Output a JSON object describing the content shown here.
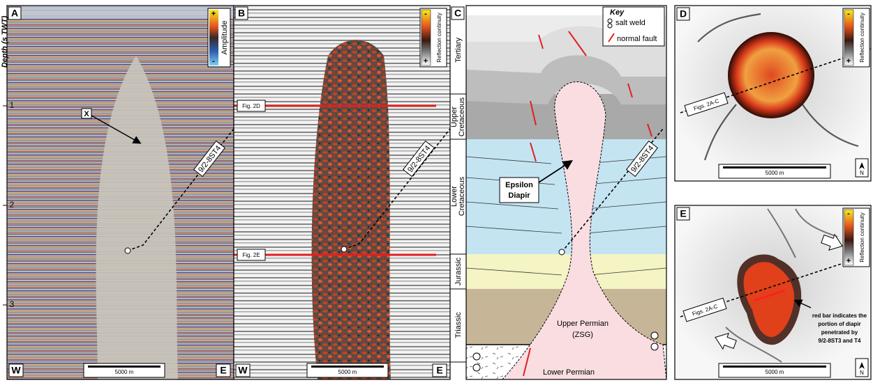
{
  "panels": {
    "A": {
      "label": "A",
      "depth_axis": {
        "title": "Depth (s TWT)",
        "ticks": [
          1,
          2,
          3
        ]
      },
      "colorbar": {
        "top": "+",
        "bottom": "-",
        "title": "Amplitude"
      },
      "marker": "X",
      "well": "9/2-8ST4",
      "west": "W",
      "east": "E",
      "scale": "5000 m"
    },
    "B": {
      "label": "B",
      "colorbar": {
        "top": "-",
        "bottom": "+",
        "title": "Reflection continuity"
      },
      "slice_lines": [
        "Fig. 2D",
        "Fig. 2E"
      ],
      "well": "9/2-8ST4",
      "west": "W",
      "east": "E",
      "scale": "5000 m"
    },
    "C": {
      "label": "C",
      "key": {
        "title": "Key",
        "items": [
          "salt weld",
          "normal fault"
        ]
      },
      "units": [
        [
          "Tertiary"
        ],
        [
          "Upper",
          "Cretaceous"
        ],
        [
          "Lower",
          "Cretaceous"
        ],
        [
          "Jurassic"
        ],
        [
          "Triassic"
        ]
      ],
      "diapir": [
        "Epsilon",
        "Diapir"
      ],
      "well": "9/2-8ST4",
      "source": [
        "Upper Permian",
        "(ZSG)"
      ],
      "base": "Lower Permian"
    },
    "D": {
      "label": "D",
      "colorbar": {
        "top": "-",
        "bottom": "+",
        "title": "Reflection continuity"
      },
      "section": "Figs. 2A-C",
      "scale": "5000 m",
      "north": "N"
    },
    "E": {
      "label": "E",
      "colorbar": {
        "top": "-",
        "bottom": "+",
        "title": "Reflection continuity"
      },
      "section": "Figs. 2A-C",
      "note": [
        "red bar indicates the",
        "portion of diapir",
        "penetrated by",
        "9/2-8ST3 and T4"
      ],
      "scale": "5000 m",
      "north": "N"
    }
  }
}
